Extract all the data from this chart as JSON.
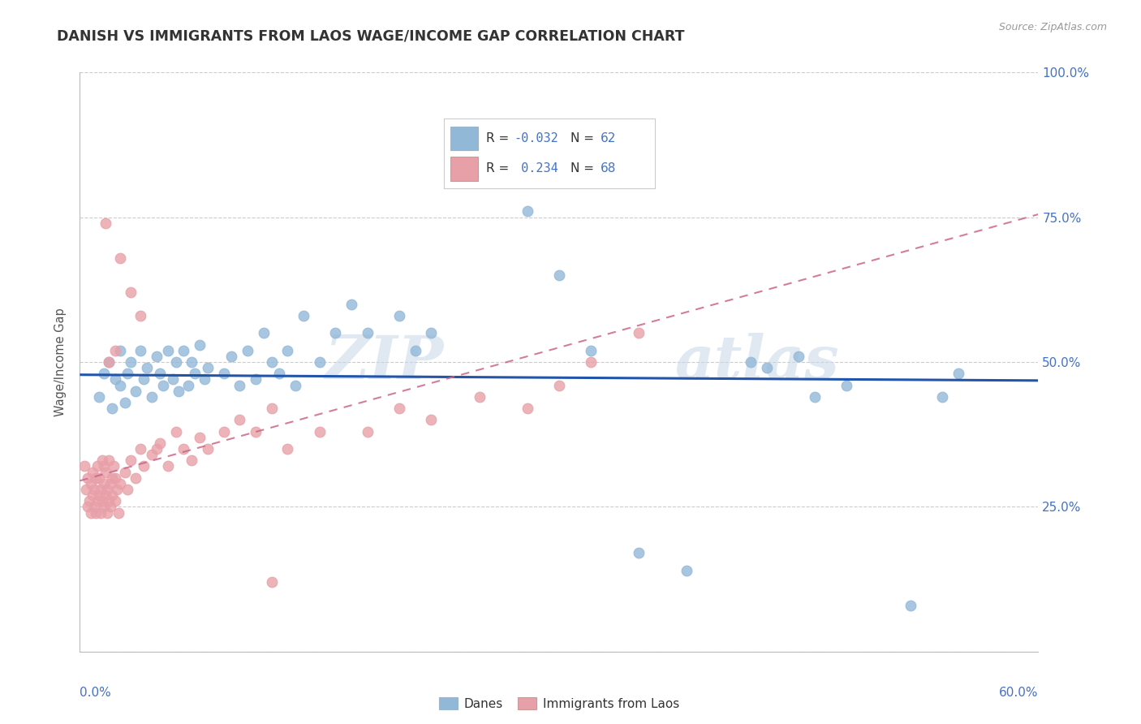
{
  "title": "DANISH VS IMMIGRANTS FROM LAOS WAGE/INCOME GAP CORRELATION CHART",
  "source_text": "Source: ZipAtlas.com",
  "ylabel": "Wage/Income Gap",
  "watermark": "ZIPatlas",
  "xlim": [
    0.0,
    0.6
  ],
  "ylim": [
    0.0,
    1.0
  ],
  "ytick_vals": [
    0.0,
    0.25,
    0.5,
    0.75,
    1.0
  ],
  "blue_color": "#92b8d8",
  "pink_color": "#e8a0a8",
  "blue_line_color": "#2255aa",
  "pink_line_color": "#cc6688",
  "axis_color": "#4472c4",
  "grid_color": "#cccccc",
  "background_color": "#ffffff",
  "title_color": "#333333",
  "legend_label_blue": "Danes",
  "legend_label_pink": "Immigrants from Laos",
  "blue_R": -0.032,
  "blue_N": 62,
  "pink_R": 0.234,
  "pink_N": 68,
  "blue_line_y0": 0.478,
  "blue_line_y1": 0.468,
  "pink_line_y0": 0.295,
  "pink_line_y1": 0.755
}
